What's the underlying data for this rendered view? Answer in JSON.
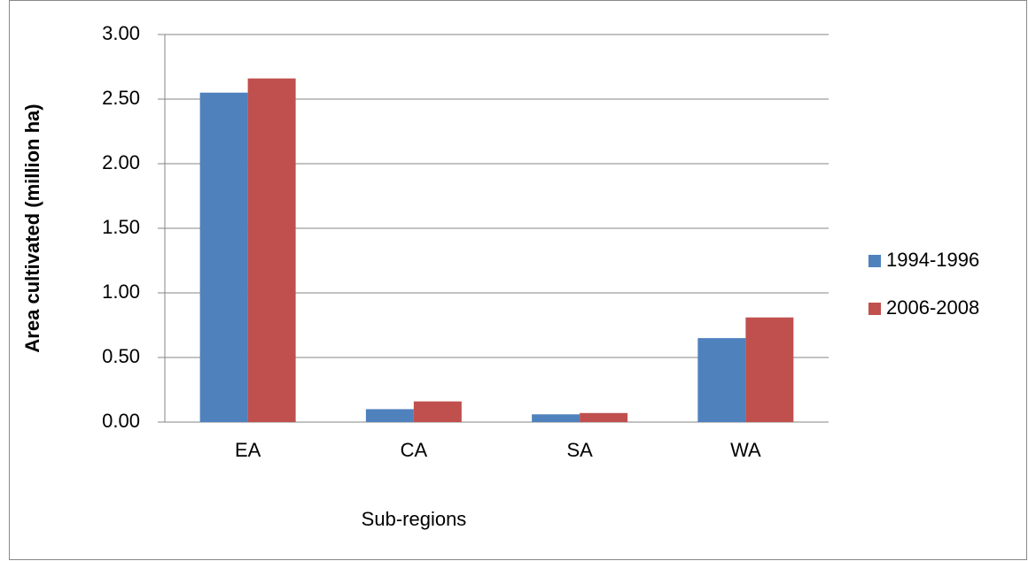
{
  "chart_data": {
    "type": "bar",
    "y_label": "Area cultivated (million ha)",
    "x_label": "Sub-regions",
    "categories": [
      "EA",
      "CA",
      "SA",
      "WA"
    ],
    "series": [
      {
        "name": "1994-1996",
        "color": "#4f81bd",
        "values": [
          2.55,
          0.1,
          0.06,
          0.65
        ]
      },
      {
        "name": "2006-2008",
        "color": "#c0504d",
        "values": [
          2.66,
          0.16,
          0.07,
          0.81
        ]
      }
    ],
    "ylim": [
      0,
      3
    ],
    "yticks": [
      {
        "value": 0,
        "label": "0.00"
      },
      {
        "value": 0.5,
        "label": "0.50"
      },
      {
        "value": 1,
        "label": "1.00"
      },
      {
        "value": 1.5,
        "label": "1.50"
      },
      {
        "value": 2,
        "label": "2.00"
      },
      {
        "value": 2.5,
        "label": "2.50"
      },
      {
        "value": 3,
        "label": "3.00"
      }
    ],
    "grid": true,
    "legend": "right"
  }
}
